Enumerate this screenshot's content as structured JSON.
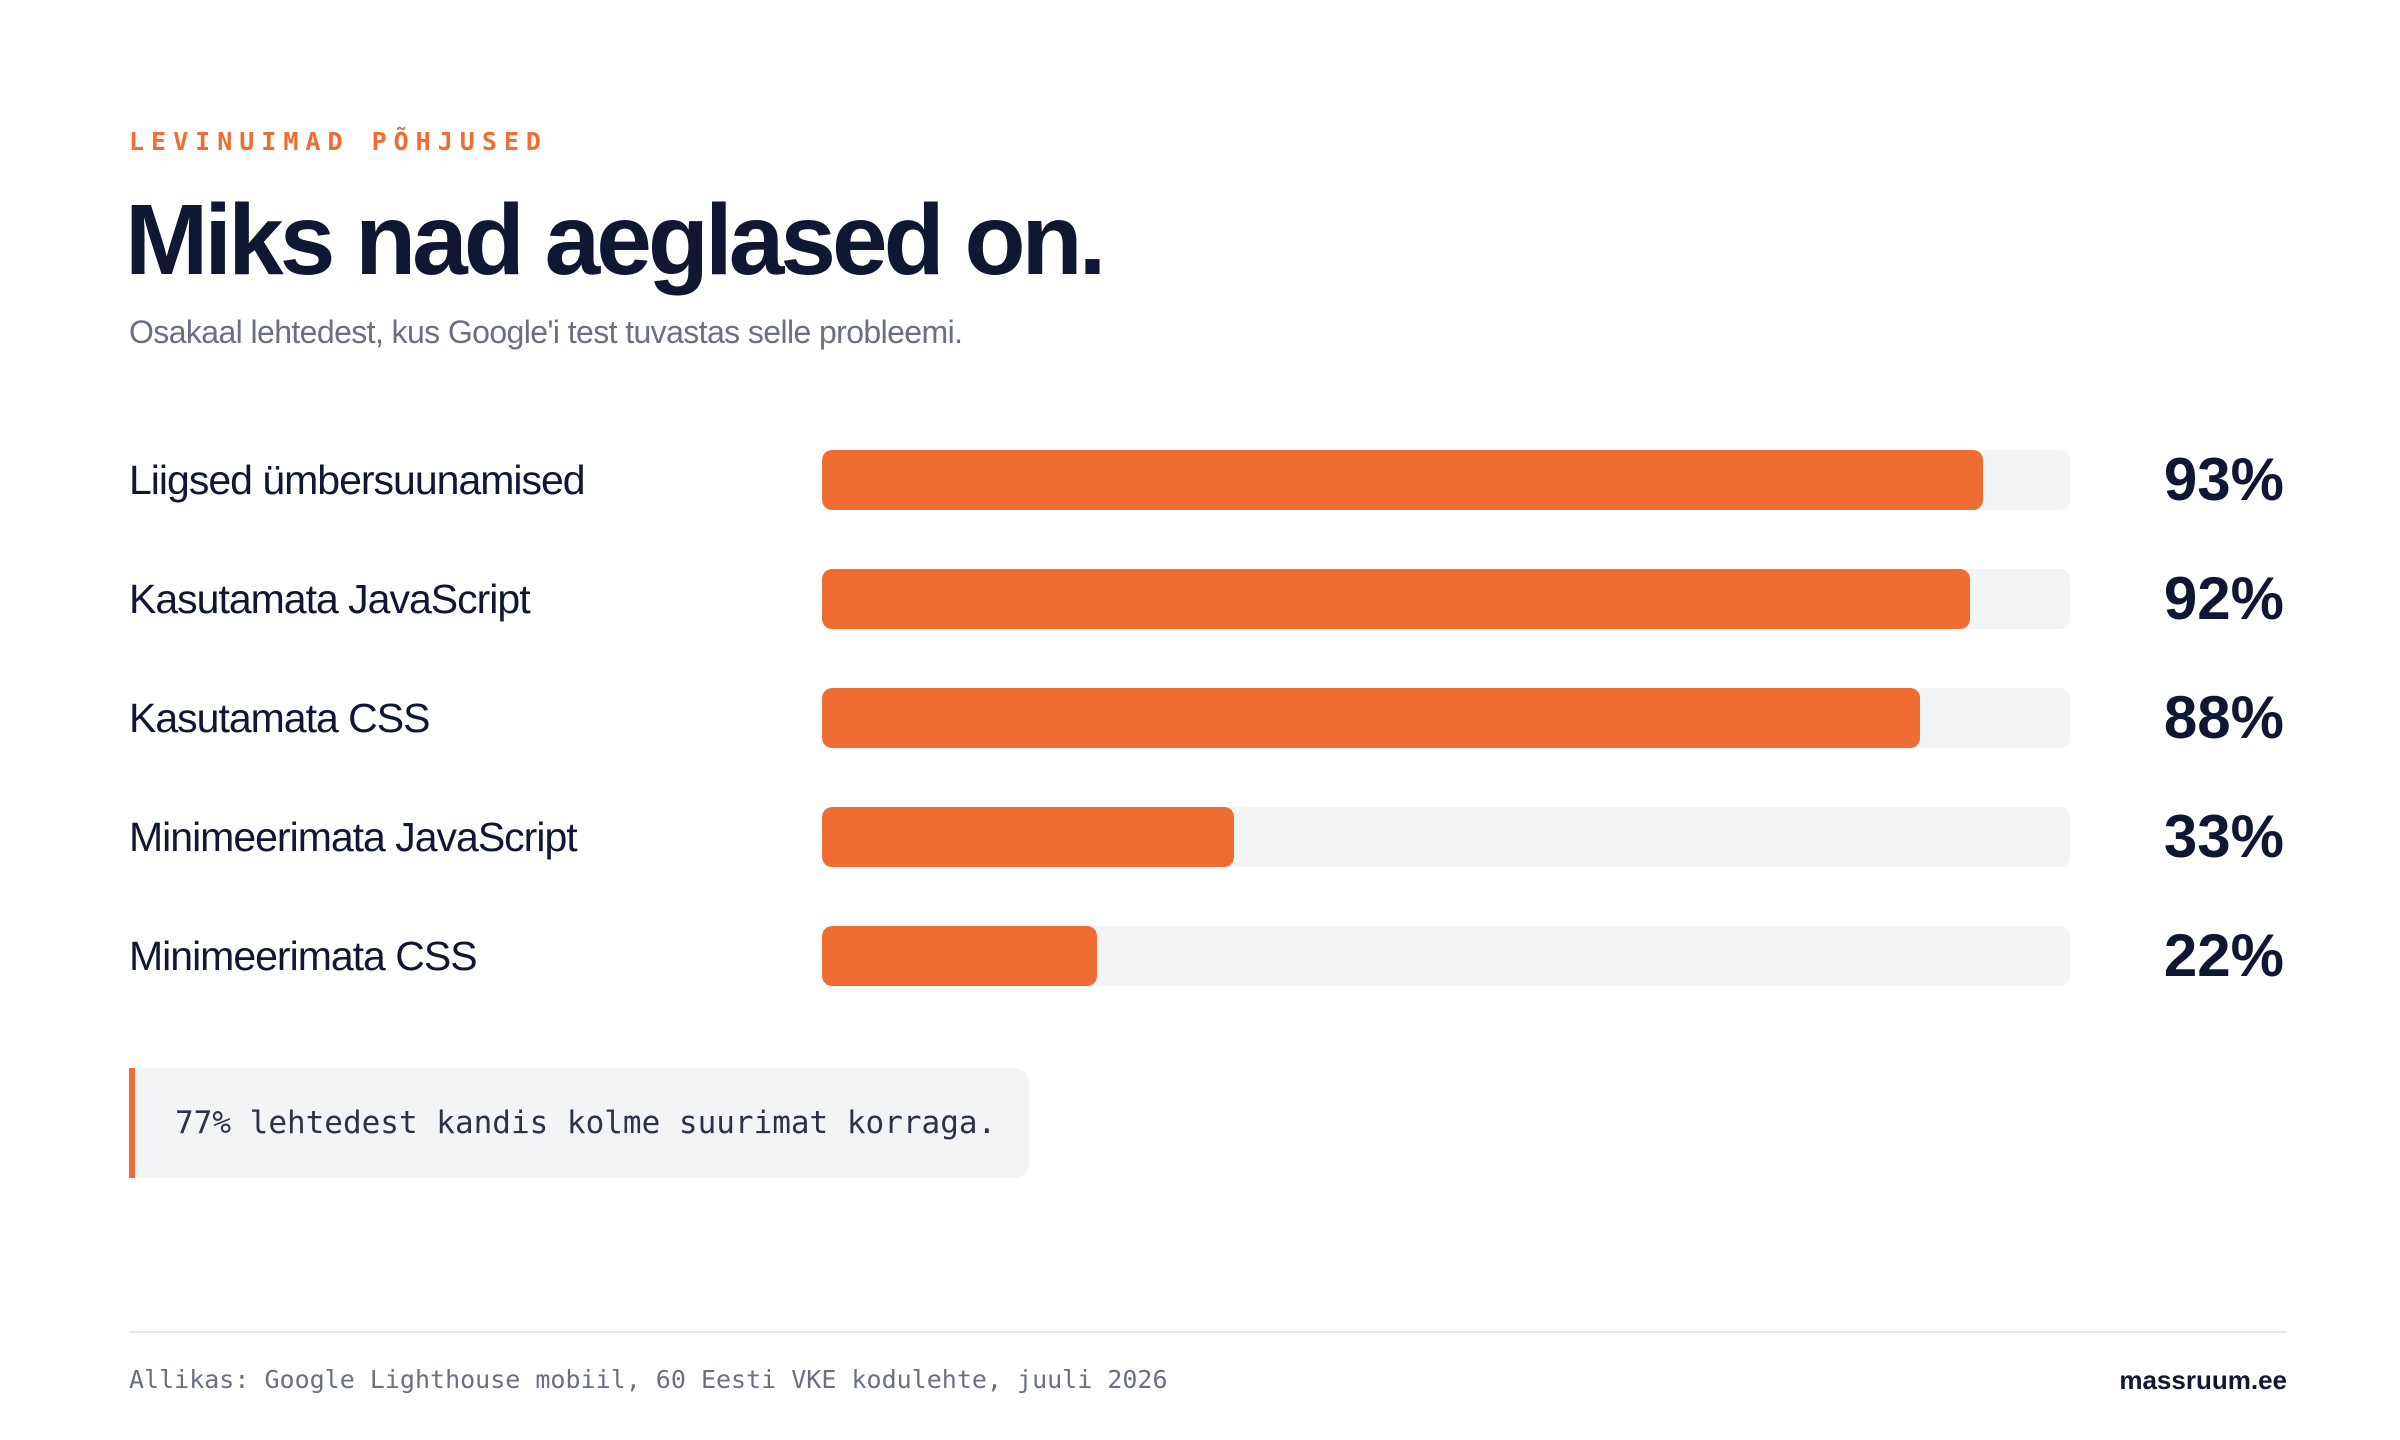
{
  "header": {
    "eyebrow": "LEVINUIMAD PÕHJUSED",
    "title": "Miks nad aeglased on.",
    "subtitle": "Osakaal lehtedest, kus Google'i test tuvastas selle probleemi."
  },
  "chart_data": {
    "type": "bar",
    "orientation": "horizontal",
    "title": "Miks nad aeglased on.",
    "subtitle": "Osakaal lehtedest, kus Google'i test tuvastas selle probleemi.",
    "categories": [
      "Liigsed ümbersuunamised",
      "Kasutamata JavaScript",
      "Kasutamata CSS",
      "Minimeerimata JavaScript",
      "Minimeerimata CSS"
    ],
    "values": [
      93,
      92,
      88,
      33,
      22
    ],
    "value_labels": [
      "93%",
      "92%",
      "88%",
      "33%",
      "22%"
    ],
    "unit": "%",
    "xlim": [
      0,
      100
    ],
    "grid": false,
    "legend": "none",
    "colors": {
      "bar": "#ef6c33",
      "track": "#f3f4f6"
    }
  },
  "callout": {
    "text": "77% lehtedest kandis kolme suurimat korraga."
  },
  "footer": {
    "source": "Allikas: Google Lighthouse mobiil, 60 Eesti VKE kodulehte, juuli 2026",
    "brand": "massruum.ee"
  },
  "colors": {
    "accent": "#ef6c33",
    "text": "#0f1733",
    "muted": "#6b7081",
    "panel": "#f3f4f6"
  }
}
